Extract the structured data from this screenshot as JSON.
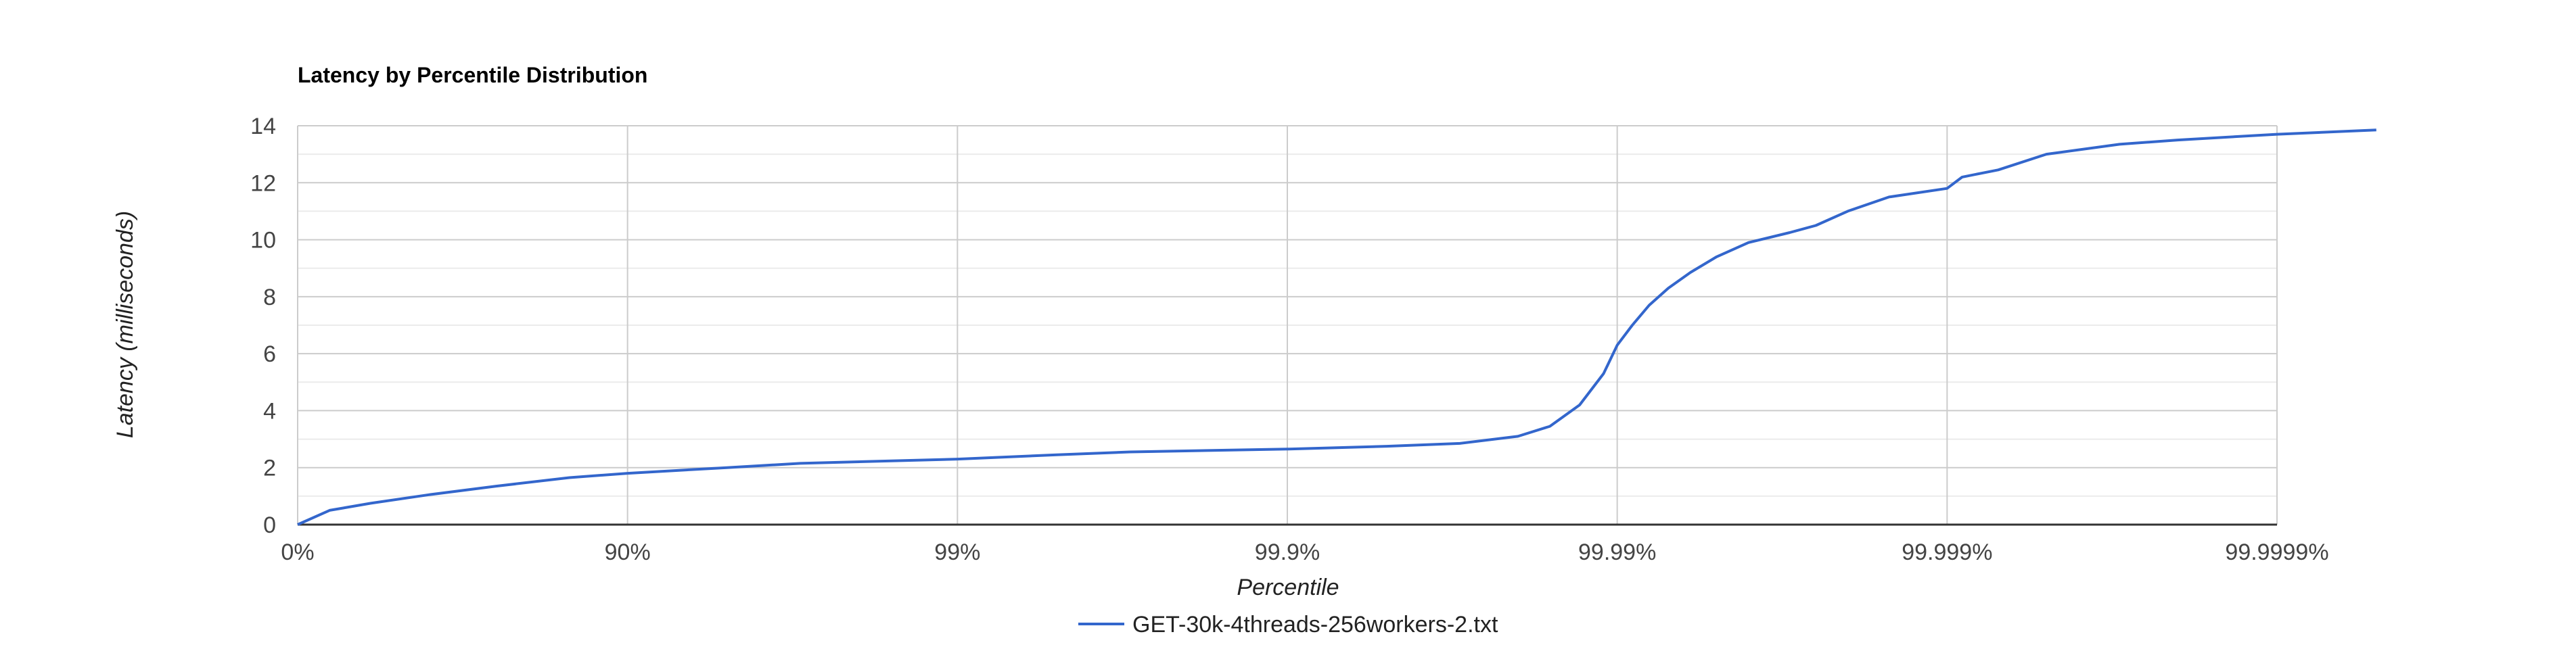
{
  "chart_data": {
    "type": "line",
    "title": "Latency by Percentile Distribution",
    "xlabel": "Percentile",
    "ylabel": "Latency (milliseconds)",
    "x_scale": "log-percentile (nines)",
    "x_ticks": [
      "0%",
      "90%",
      "99%",
      "99.9%",
      "99.99%",
      "99.999%",
      "99.9999%"
    ],
    "y_ticks": [
      "0",
      "2",
      "4",
      "6",
      "8",
      "10",
      "12",
      "14"
    ],
    "ylim": [
      0,
      14
    ],
    "grid": true,
    "legend_position": "bottom",
    "series": [
      {
        "name": "GET-30k-4threads-256workers-2.txt",
        "color": "#3366cc",
        "points": [
          {
            "x": "0%",
            "y": 0.0
          },
          {
            "x": "20%",
            "y": 0.5
          },
          {
            "x": "40%",
            "y": 0.75
          },
          {
            "x": "60%",
            "y": 1.05
          },
          {
            "x": "75%",
            "y": 1.35
          },
          {
            "x": "85%",
            "y": 1.65
          },
          {
            "x": "90%",
            "y": 1.8
          },
          {
            "x": "95%",
            "y": 2.0
          },
          {
            "x": "97%",
            "y": 2.15
          },
          {
            "x": "99%",
            "y": 2.3
          },
          {
            "x": "99.5%",
            "y": 2.45
          },
          {
            "x": "99.7%",
            "y": 2.55
          },
          {
            "x": "99.9%",
            "y": 2.65
          },
          {
            "x": "99.95%",
            "y": 2.75
          },
          {
            "x": "99.97%",
            "y": 2.85
          },
          {
            "x": "99.98%",
            "y": 3.1
          },
          {
            "x": "99.984%",
            "y": 3.45
          },
          {
            "x": "99.987%",
            "y": 4.2
          },
          {
            "x": "99.989%",
            "y": 5.3
          },
          {
            "x": "99.99%",
            "y": 6.3
          },
          {
            "x": "99.991%",
            "y": 7.0
          },
          {
            "x": "99.992%",
            "y": 7.7
          },
          {
            "x": "99.993%",
            "y": 8.3
          },
          {
            "x": "99.994%",
            "y": 8.85
          },
          {
            "x": "99.995%",
            "y": 9.4
          },
          {
            "x": "99.996%",
            "y": 9.9
          },
          {
            "x": "99.997%",
            "y": 10.25
          },
          {
            "x": "99.9975%",
            "y": 10.5
          },
          {
            "x": "99.998%",
            "y": 11.0
          },
          {
            "x": "99.9985%",
            "y": 11.5
          },
          {
            "x": "99.999%",
            "y": 11.8
          },
          {
            "x": "99.9991%",
            "y": 12.2
          },
          {
            "x": "99.9993%",
            "y": 12.45
          },
          {
            "x": "99.9995%",
            "y": 13.0
          },
          {
            "x": "99.9997%",
            "y": 13.35
          },
          {
            "x": "99.9998%",
            "y": 13.5
          },
          {
            "x": "99.9999%",
            "y": 13.7
          },
          {
            "x": "99.99995%",
            "y": 13.85
          }
        ]
      }
    ]
  }
}
